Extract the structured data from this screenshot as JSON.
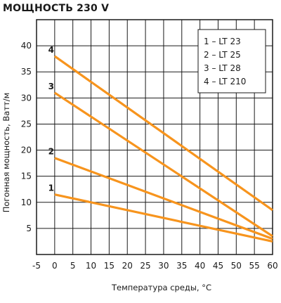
{
  "title": "МОЩНОСТЬ 230 V",
  "chart_data": {
    "type": "line",
    "xlabel": "Температура среды, °С",
    "ylabel": "Погонная мощность, Ватт/м",
    "xlim": [
      -5,
      60
    ],
    "ylim": [
      0,
      45
    ],
    "x_ticks": [
      "-5",
      "0",
      "5",
      "10",
      "15",
      "20",
      "25",
      "30",
      "35",
      "40",
      "45",
      "50",
      "55",
      "60"
    ],
    "y_ticks": [
      "5",
      "10",
      "15",
      "20",
      "25",
      "30",
      "35",
      "40"
    ],
    "grid": true,
    "legend": {
      "placement": "top-right",
      "entries": [
        "1 – LT 23",
        "2 – LT 25",
        "3 – LT 28",
        "4 – LT 210"
      ]
    },
    "series": [
      {
        "name": "1",
        "x": [
          0,
          60
        ],
        "y": [
          11.5,
          2.5
        ]
      },
      {
        "name": "2",
        "x": [
          0,
          60
        ],
        "y": [
          18.5,
          3
        ]
      },
      {
        "name": "3",
        "x": [
          0,
          60
        ],
        "y": [
          31,
          3.5
        ]
      },
      {
        "name": "4",
        "x": [
          0,
          60
        ],
        "y": [
          38,
          8.5
        ]
      }
    ],
    "line_color": "#f7941d"
  }
}
